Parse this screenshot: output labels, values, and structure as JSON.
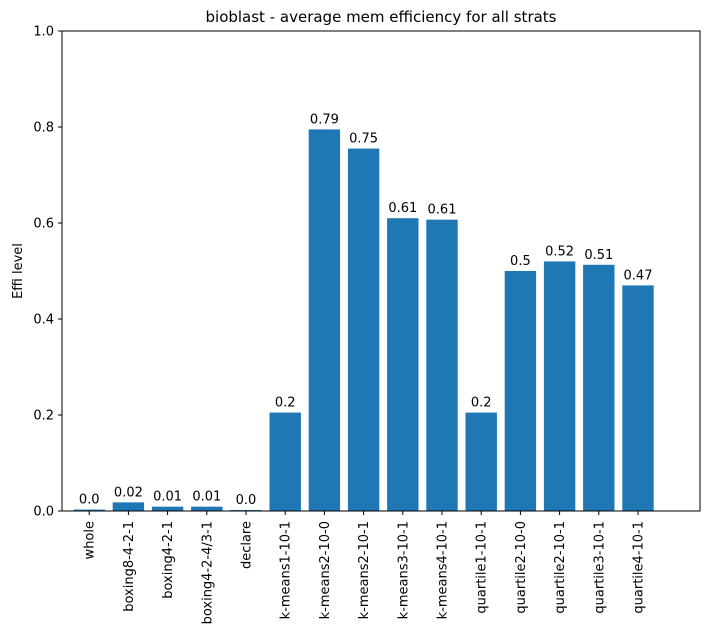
{
  "chart_data": {
    "type": "bar",
    "title": "bioblast - average mem efficiency for all strats",
    "xlabel": "",
    "ylabel": "Effi level",
    "ylim": [
      0,
      1.0
    ],
    "yticks": [
      "0.0",
      "0.2",
      "0.4",
      "0.6",
      "0.8",
      "1.0"
    ],
    "grid": false,
    "color": "#1f77b4",
    "categories": [
      "whole",
      "boxing8-4-2-1",
      "boxing4-2-1",
      "boxing4-2-4/3-1",
      "declare",
      "k-means1-10-1",
      "k-means2-10-0",
      "k-means2-10-1",
      "k-means3-10-1",
      "k-means4-10-1",
      "quartile1-10-1",
      "quartile2-10-0",
      "quartile2-10-1",
      "quartile3-10-1",
      "quartile4-10-1"
    ],
    "values": [
      0.003,
      0.018,
      0.009,
      0.009,
      0.002,
      0.205,
      0.795,
      0.755,
      0.61,
      0.607,
      0.205,
      0.5,
      0.52,
      0.513,
      0.47
    ],
    "data_labels": [
      "0.0",
      "0.02",
      "0.01",
      "0.01",
      "0.0",
      "0.2",
      "0.79",
      "0.75",
      "0.61",
      "0.61",
      "0.2",
      "0.5",
      "0.52",
      "0.51",
      "0.47"
    ]
  }
}
